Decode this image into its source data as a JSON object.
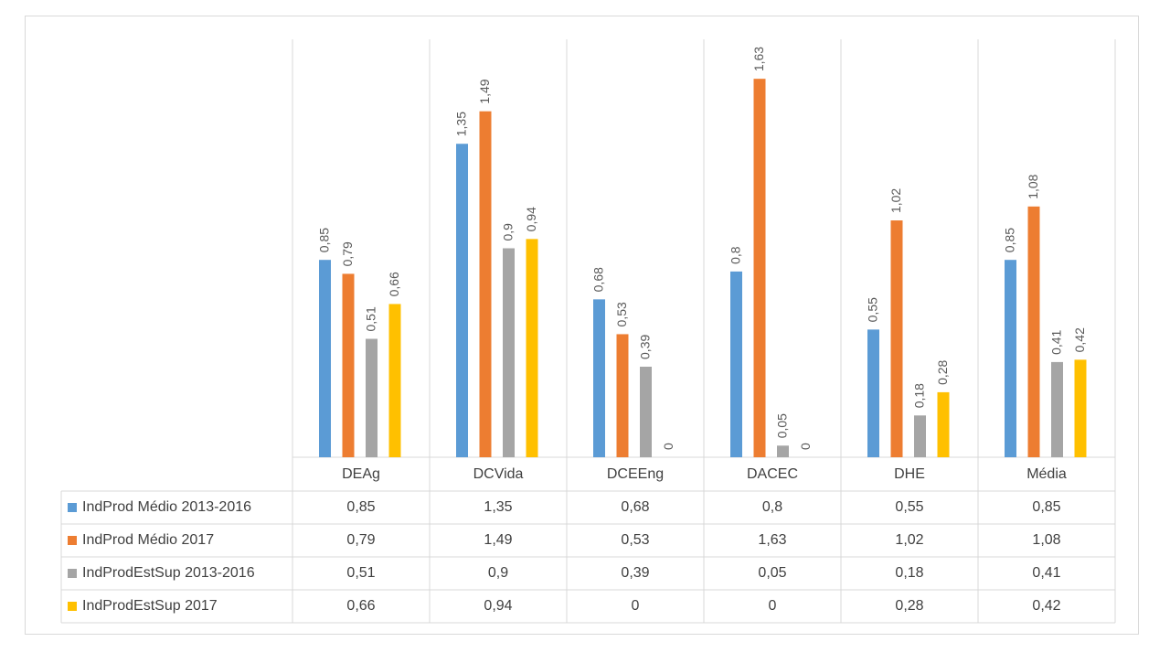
{
  "chart_data": {
    "type": "bar",
    "categories": [
      "DEAg",
      "DCVida",
      "DCEEng",
      "DACEC",
      "DHE",
      "Média"
    ],
    "ylim": [
      0,
      1.8
    ],
    "series": [
      {
        "name": "IndProd Médio 2013-2016",
        "color": "#5b9bd5",
        "values": [
          0.85,
          1.35,
          0.68,
          0.8,
          0.55,
          0.85
        ],
        "value_labels": [
          "0,85",
          "1,35",
          "0,68",
          "0,8",
          "0,55",
          "0,85"
        ]
      },
      {
        "name": "IndProd Médio 2017",
        "color": "#ed7d31",
        "values": [
          0.79,
          1.49,
          0.53,
          1.63,
          1.02,
          1.08
        ],
        "value_labels": [
          "0,79",
          "1,49",
          "0,53",
          "1,63",
          "1,02",
          "1,08"
        ]
      },
      {
        "name": "IndProdEstSup 2013-2016",
        "color": "#a5a5a5",
        "values": [
          0.51,
          0.9,
          0.39,
          0.05,
          0.18,
          0.41
        ],
        "value_labels": [
          "0,51",
          "0,9",
          "0,39",
          "0,05",
          "0,18",
          "0,41"
        ]
      },
      {
        "name": "IndProdEstSup 2017",
        "color": "#ffc000",
        "values": [
          0.66,
          0.94,
          0,
          0,
          0.28,
          0.42
        ],
        "value_labels": [
          "0,66",
          "0,94",
          "0",
          "0",
          "0,28",
          "0,42"
        ]
      }
    ]
  }
}
